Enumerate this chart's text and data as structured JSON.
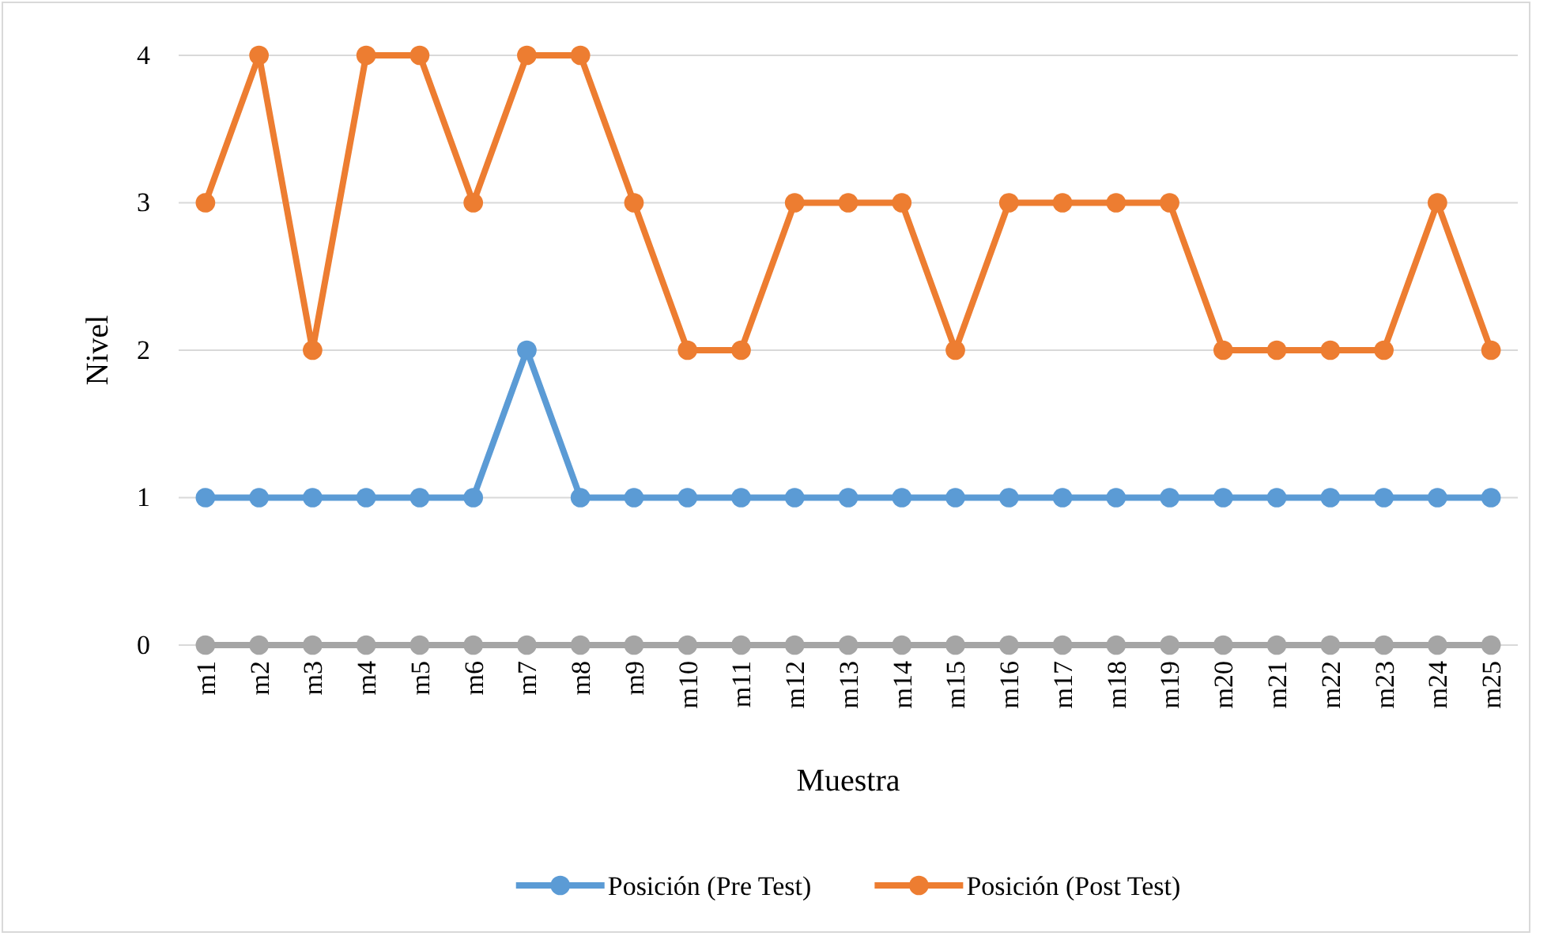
{
  "chart_data": {
    "type": "line",
    "xlabel": "Muestra",
    "ylabel": "Nivel",
    "categories": [
      "m1",
      "m2",
      "m3",
      "m4",
      "m5",
      "m6",
      "m7",
      "m8",
      "m9",
      "m10",
      "m11",
      "m12",
      "m13",
      "m14",
      "m15",
      "m16",
      "m17",
      "m18",
      "m19",
      "m20",
      "m21",
      "m22",
      "m23",
      "m24",
      "m25"
    ],
    "series": [
      {
        "name": "Posición (Pre Test)",
        "color": "#5b9bd5",
        "values": [
          1,
          1,
          1,
          1,
          1,
          1,
          2,
          1,
          1,
          1,
          1,
          1,
          1,
          1,
          1,
          1,
          1,
          1,
          1,
          1,
          1,
          1,
          1,
          1,
          1
        ]
      },
      {
        "name": "Posición (Post Test)",
        "color": "#ed7d31",
        "values": [
          3,
          4,
          2,
          4,
          4,
          3,
          4,
          4,
          3,
          2,
          2,
          3,
          3,
          3,
          2,
          3,
          3,
          3,
          3,
          2,
          2,
          2,
          2,
          3,
          2
        ]
      },
      {
        "color": "#a5a5a5",
        "values": [
          0,
          0,
          0,
          0,
          0,
          0,
          0,
          0,
          0,
          0,
          0,
          0,
          0,
          0,
          0,
          0,
          0,
          0,
          0,
          0,
          0,
          0,
          0,
          0,
          0
        ]
      }
    ],
    "ylim": [
      0,
      4
    ],
    "yticks": [
      0,
      1,
      2,
      3,
      4
    ],
    "grid": "y",
    "legend": "bottom",
    "marker": "circle",
    "line_style": "solid"
  }
}
